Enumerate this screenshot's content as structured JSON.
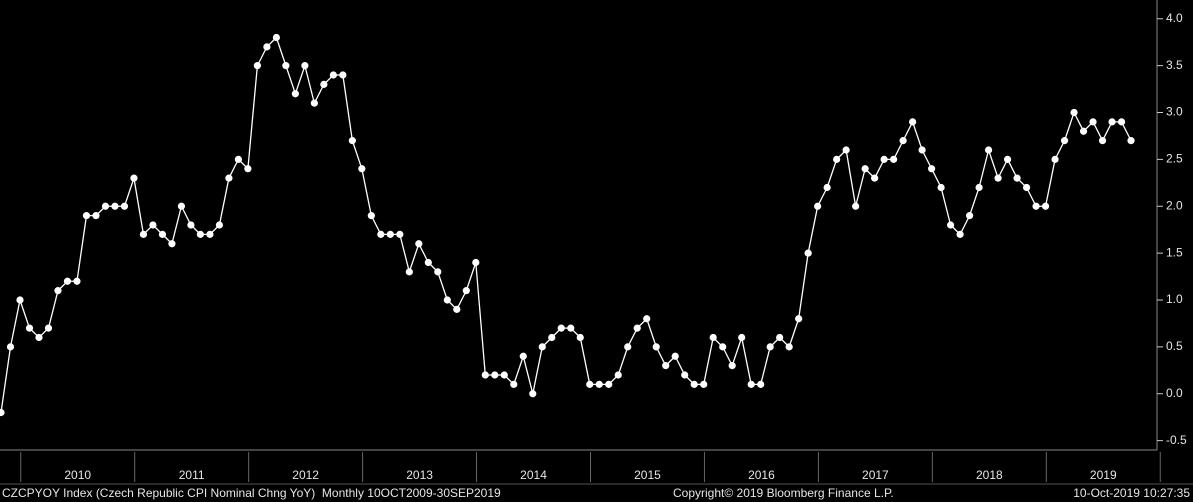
{
  "chart_data": {
    "type": "line",
    "values": [
      -0.2,
      0.5,
      1.0,
      0.7,
      0.6,
      0.7,
      1.1,
      1.2,
      1.2,
      1.9,
      1.9,
      2.0,
      2.0,
      2.0,
      2.3,
      1.7,
      1.8,
      1.7,
      1.6,
      2.0,
      1.8,
      1.7,
      1.7,
      1.8,
      2.3,
      2.5,
      2.4,
      3.5,
      3.7,
      3.8,
      3.5,
      3.2,
      3.5,
      3.1,
      3.3,
      3.4,
      3.4,
      2.7,
      2.4,
      1.9,
      1.7,
      1.7,
      1.7,
      1.3,
      1.6,
      1.4,
      1.3,
      1.0,
      0.9,
      1.1,
      1.4,
      0.2,
      0.2,
      0.2,
      0.1,
      0.4,
      0.0,
      0.5,
      0.6,
      0.7,
      0.7,
      0.6,
      0.1,
      0.1,
      0.1,
      0.2,
      0.5,
      0.7,
      0.8,
      0.5,
      0.3,
      0.4,
      0.2,
      0.1,
      0.1,
      0.6,
      0.5,
      0.3,
      0.6,
      0.1,
      0.1,
      0.5,
      0.6,
      0.5,
      0.8,
      1.5,
      2.0,
      2.2,
      2.5,
      2.6,
      2.0,
      2.4,
      2.3,
      2.5,
      2.5,
      2.7,
      2.9,
      2.6,
      2.4,
      2.2,
      1.8,
      1.7,
      1.9,
      2.2,
      2.6,
      2.3,
      2.5,
      2.3,
      2.2,
      2.0,
      2.0,
      2.5,
      2.7,
      3.0,
      2.8,
      2.9,
      2.7,
      2.9,
      2.9,
      2.7
    ],
    "color": "#ffffff",
    "year_labels": [
      "2010",
      "2011",
      "2012",
      "2013",
      "2014",
      "2015",
      "2016",
      "2017",
      "2018",
      "2019"
    ],
    "ylim": [
      -0.6,
      4.2
    ],
    "yticks": [
      {
        "value": 4,
        "label": "4.0"
      },
      3.5,
      {
        "value": 3,
        "label": "3.0"
      },
      2.5,
      {
        "value": 2,
        "label": "2.0"
      },
      1.5,
      {
        "value": 1,
        "label": "1.0"
      },
      0.5,
      {
        "value": 0,
        "label": "0.0"
      },
      -0.5
    ],
    "footer": {
      "left": "CZCPYOY Index (Czech Republic CPI Nominal Chng YoY)  Monthly 10OCT2009-30SEP2019",
      "center": "Copyright© 2019 Bloomberg Finance L.P.",
      "right": "10-Oct-2019 10:27:35"
    }
  }
}
